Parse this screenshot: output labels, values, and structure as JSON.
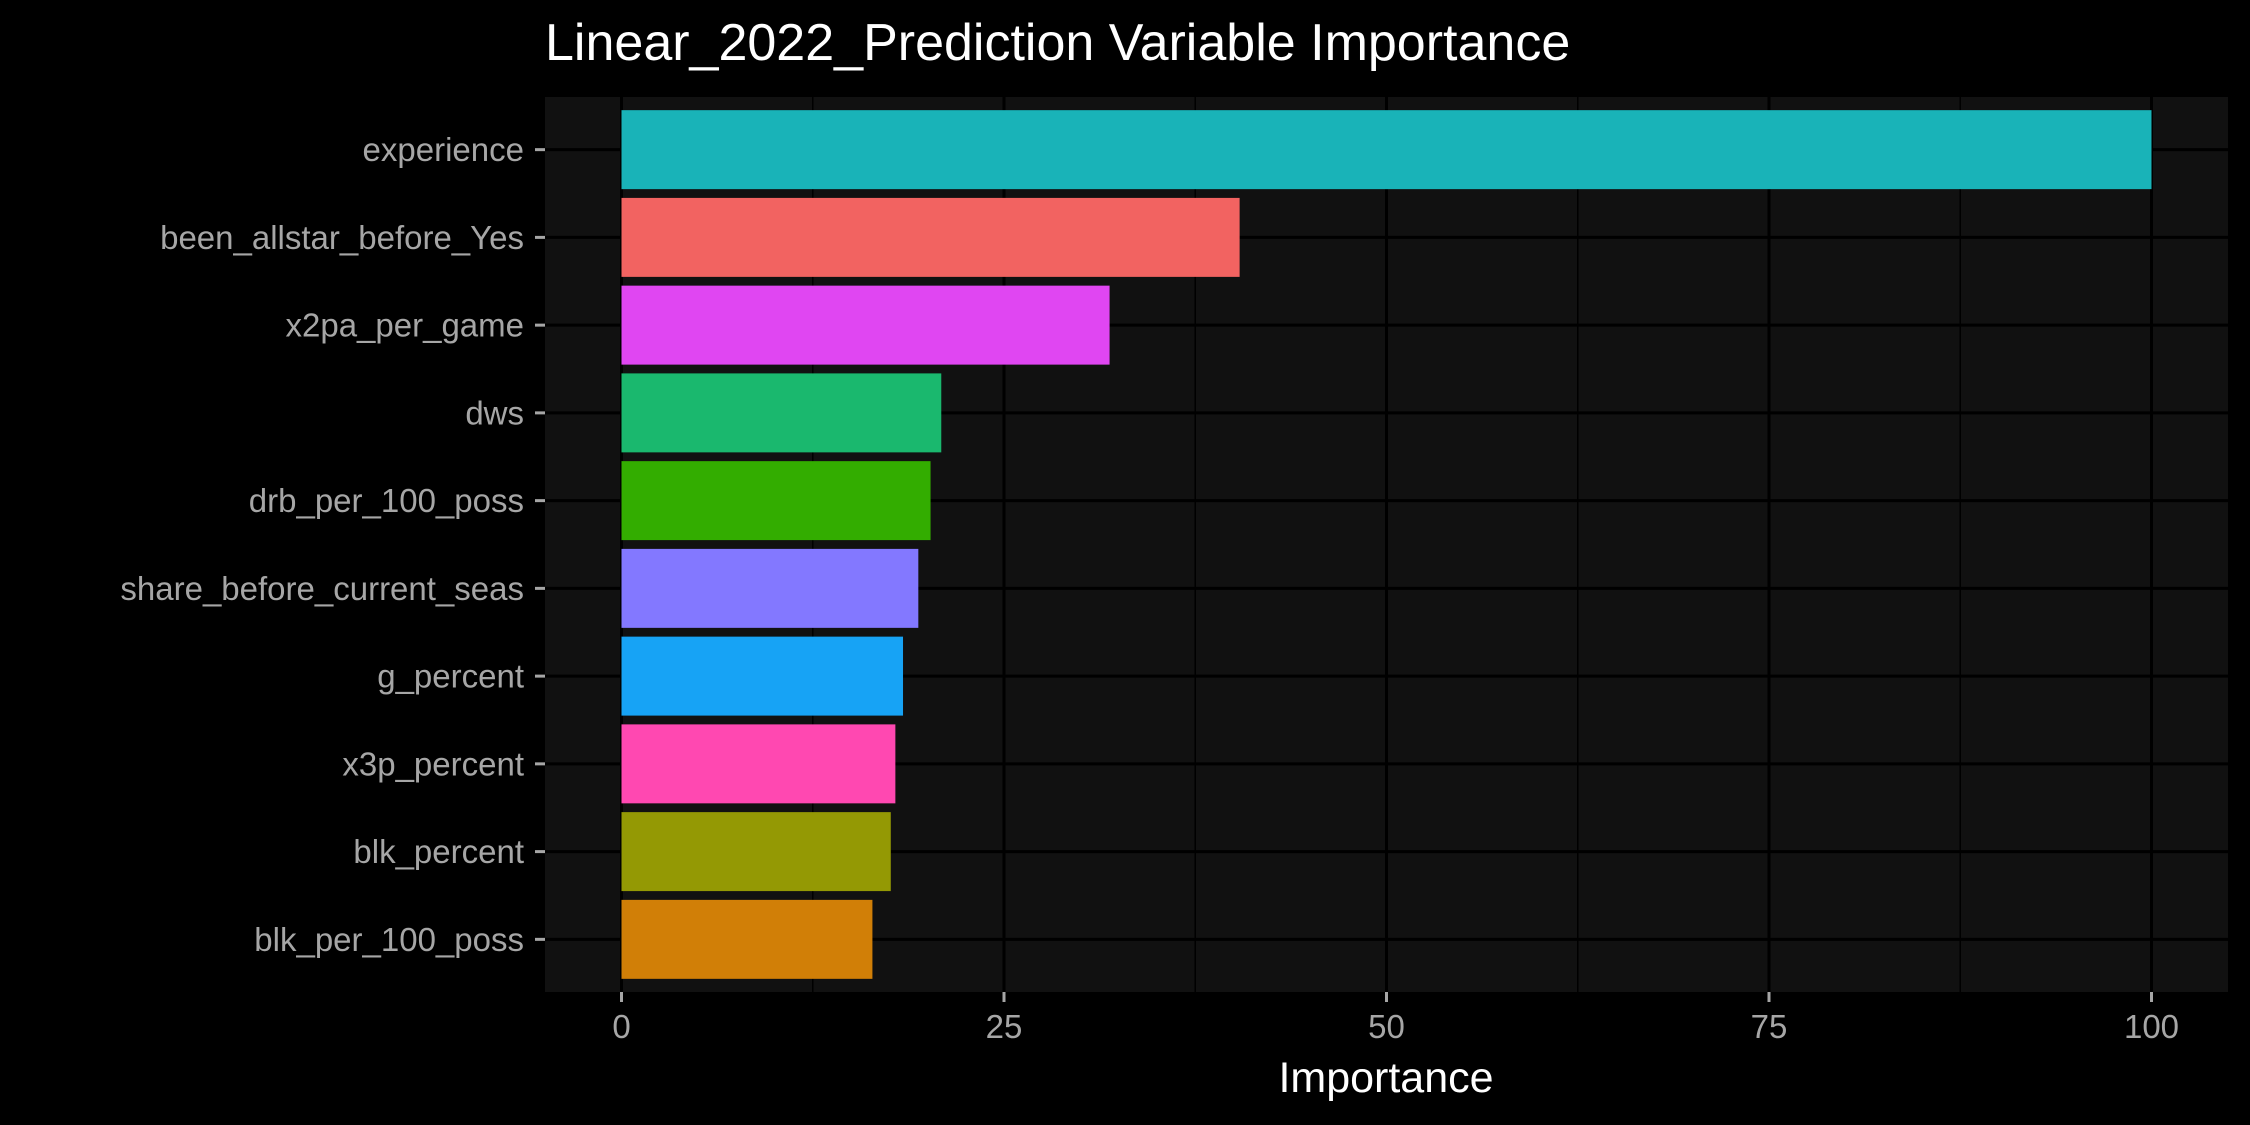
{
  "chart_data": {
    "type": "bar",
    "orientation": "horizontal",
    "title": "Linear_2022_Prediction Variable Importance",
    "xlabel": "Importance",
    "ylabel": "",
    "xlim": [
      -5,
      105
    ],
    "x_ticks": [
      0,
      25,
      50,
      75,
      100
    ],
    "x_tick_labels": [
      "0",
      "25",
      "50",
      "75",
      "100"
    ],
    "grid": true,
    "legend": "none",
    "panel_background": "#111111",
    "page_background": "#000000",
    "categories": [
      "experience",
      "been_allstar_before_Yes",
      "x2pa_per_game",
      "dws",
      "drb_per_100_poss",
      "share_before_current_seas",
      "g_percent",
      "x3p_percent",
      "blk_percent",
      "blk_per_100_poss"
    ],
    "values": [
      100,
      40.4,
      31.9,
      20.9,
      20.2,
      19.4,
      18.4,
      17.9,
      17.6,
      16.4
    ],
    "colors": [
      "#19B3B8",
      "#F26361",
      "#E046F2",
      "#1AB86E",
      "#33AD00",
      "#8378FF",
      "#17A3F5",
      "#FF48B1",
      "#949904",
      "#D17F07"
    ]
  }
}
